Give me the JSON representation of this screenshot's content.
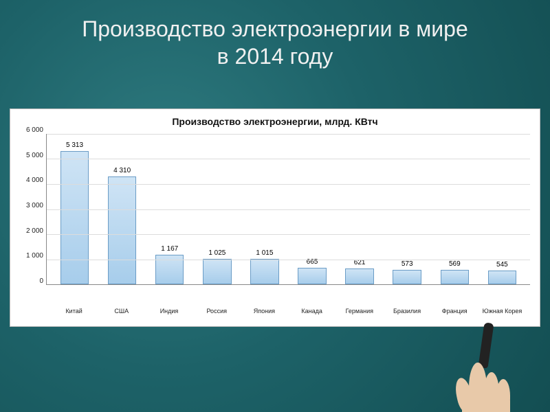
{
  "slide": {
    "title_line1": "Производство электроэнергии  в мире",
    "title_line2": "в 2014 году",
    "background_colors": [
      "#2e7a7f",
      "#1d6268",
      "#134e52"
    ],
    "title_color": "#f0f0f0",
    "title_fontsize": 32
  },
  "chart": {
    "type": "bar",
    "title": "Производство электроэнергии, млрд. КВтч",
    "title_fontsize": 14,
    "background_color": "#ffffff",
    "border_color": "#b9b9b9",
    "grid_color": "#dcdcdc",
    "axis_color": "#888888",
    "bar_fill_top": "#cfe4f5",
    "bar_fill_bottom": "#a7cdeb",
    "bar_border": "#6a9cc6",
    "label_fontsize": 10,
    "ylim": [
      0,
      6000
    ],
    "ytick_step": 1000,
    "yticks": [
      "6 000",
      "5 000",
      "4 000",
      "3 000",
      "2 000",
      "1 000",
      "0"
    ],
    "categories": [
      "Китай",
      "США",
      "Индия",
      "Россия",
      "Япония",
      "Канада",
      "Германия",
      "Бразилия",
      "Франция",
      "Южная Корея"
    ],
    "values": [
      5313,
      4310,
      1167,
      1025,
      1015,
      665,
      621,
      573,
      569,
      545
    ],
    "value_labels": [
      "5 313",
      "4 310",
      "1 167",
      "1 025",
      "1 015",
      "665",
      "621",
      "573",
      "569",
      "545"
    ],
    "bar_width": 0.6
  }
}
